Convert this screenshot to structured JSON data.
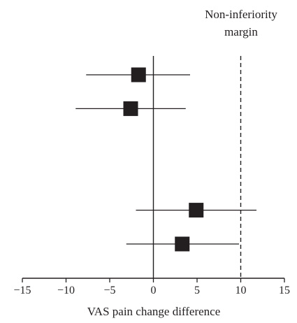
{
  "chart_data": {
    "type": "scatter",
    "subtype": "forest-plot",
    "title": "",
    "xlabel": "VAS pain change difference",
    "ylabel": "",
    "xlim": [
      -15,
      15
    ],
    "xticks": [
      "−15",
      "−10",
      "−5",
      "0",
      "5",
      "10",
      "15"
    ],
    "xtick_values": [
      -15,
      -10,
      -5,
      0,
      5,
      10,
      15
    ],
    "grid": false,
    "reference_line": {
      "x": 0,
      "style": "solid"
    },
    "margin_line": {
      "x": 10,
      "style": "dashed",
      "label_lines": [
        "Non-inferiority",
        "margin"
      ]
    },
    "rows": 6,
    "points": [
      {
        "row": 1,
        "estimate": -1.7,
        "ci": [
          -7.7,
          4.2
        ]
      },
      {
        "row": 2,
        "estimate": -2.6,
        "ci": [
          -8.9,
          3.7
        ]
      },
      {
        "row": 5,
        "estimate": 4.9,
        "ci": [
          -2.0,
          11.8
        ]
      },
      {
        "row": 6,
        "estimate": 3.3,
        "ci": [
          -3.1,
          9.8
        ]
      }
    ],
    "colors": {
      "ink": "#231f20",
      "background": "#ffffff"
    }
  }
}
